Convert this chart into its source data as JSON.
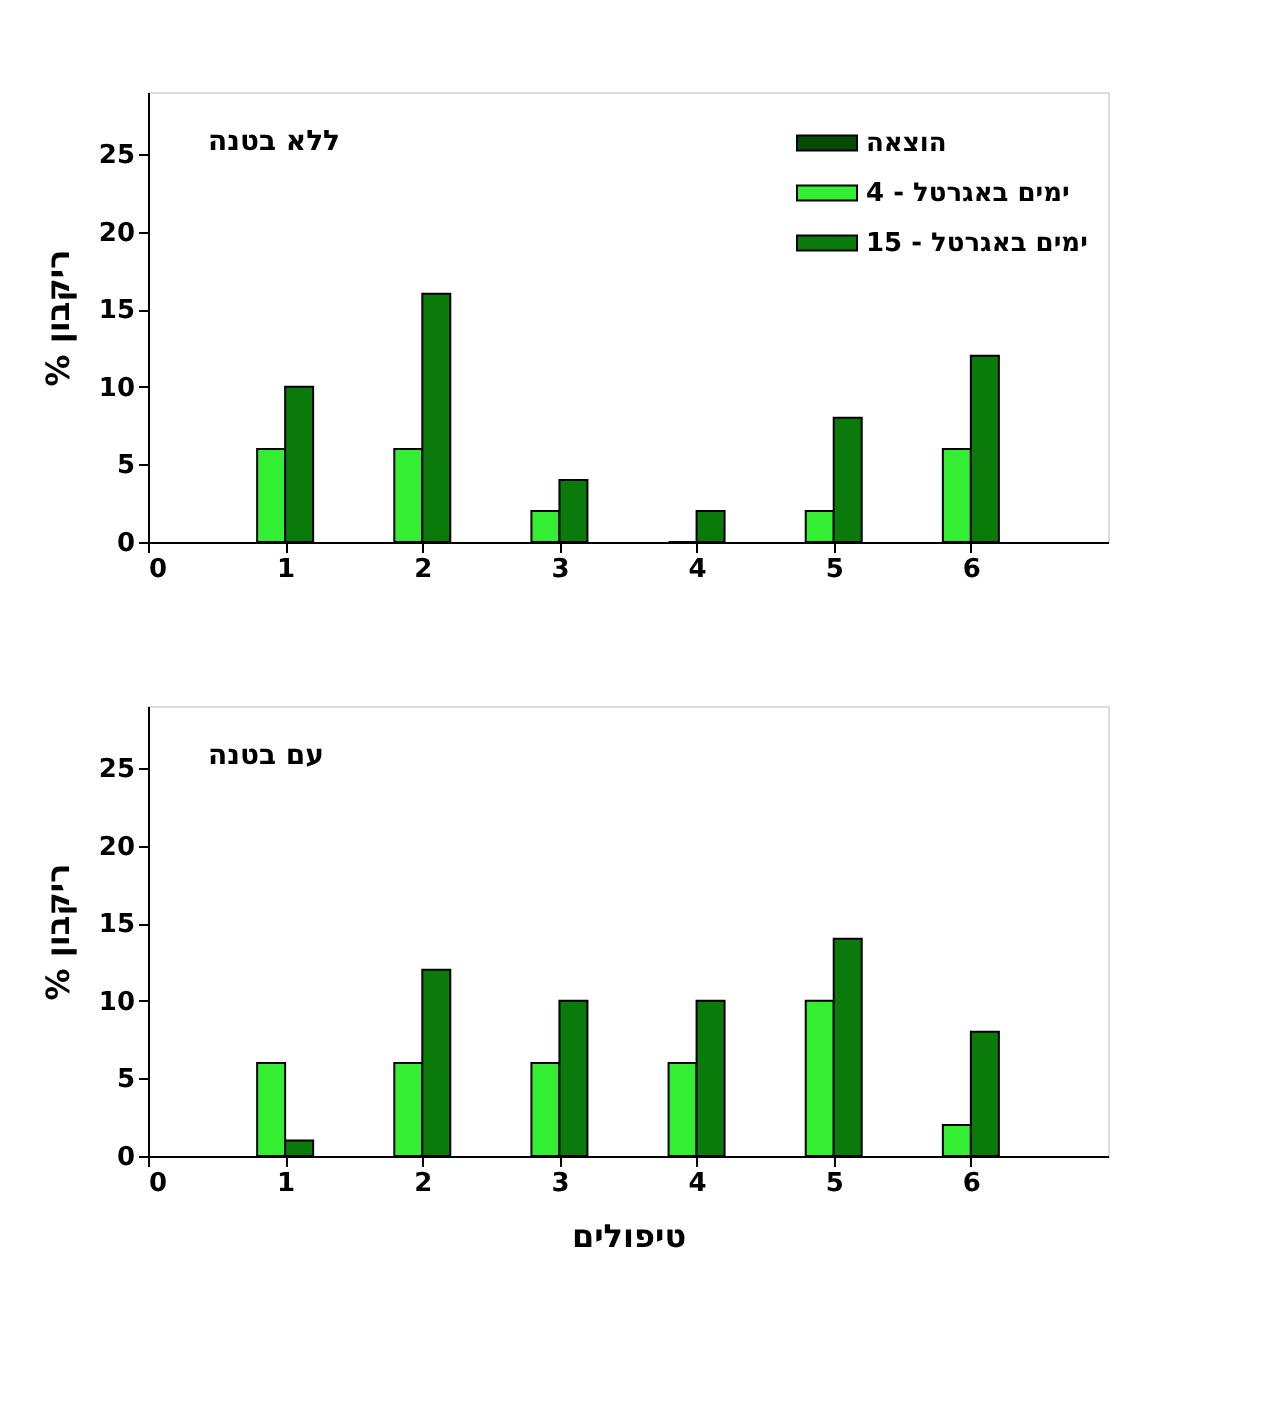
{
  "chart_data": [
    {
      "type": "bar",
      "ylabel": "% ריקבון",
      "annotations": [
        "ללא בטנה"
      ],
      "legend": "top right",
      "grid": false,
      "x": [
        1,
        2,
        3,
        4,
        5,
        6
      ],
      "xlim": [
        0,
        7
      ],
      "xticks": [
        0,
        1,
        2,
        3,
        4,
        5,
        6
      ],
      "ylim": [
        0,
        29
      ],
      "yticks": [
        0,
        5,
        10,
        15,
        20,
        25
      ],
      "series": [
        {
          "name": "הוצאה",
          "color": "#064a06",
          "values": [
            null,
            null,
            null,
            null,
            null,
            null
          ]
        },
        {
          "name": "ימים באגרטל - 4",
          "color": "#33ee33",
          "values": [
            6,
            6,
            2,
            0,
            2,
            6
          ]
        },
        {
          "name": "ימים באגרטל - 15",
          "color": "#0a7a0a",
          "values": [
            10,
            16,
            4,
            2,
            8,
            12
          ]
        }
      ]
    },
    {
      "type": "bar",
      "ylabel": "% ריקבון",
      "xlabel": "טיפולים",
      "annotations": [
        "עם בטנה"
      ],
      "grid": false,
      "x": [
        1,
        2,
        3,
        4,
        5,
        6
      ],
      "xlim": [
        0,
        7
      ],
      "xticks": [
        0,
        1,
        2,
        3,
        4,
        5,
        6
      ],
      "ylim": [
        0,
        29
      ],
      "yticks": [
        0,
        5,
        10,
        15,
        20,
        25
      ],
      "series": [
        {
          "color": "#33ee33",
          "values": [
            6,
            6,
            6,
            6,
            10,
            2
          ]
        },
        {
          "color": "#0a7a0a",
          "values": [
            1,
            12,
            10,
            10,
            14,
            8
          ]
        }
      ]
    }
  ]
}
